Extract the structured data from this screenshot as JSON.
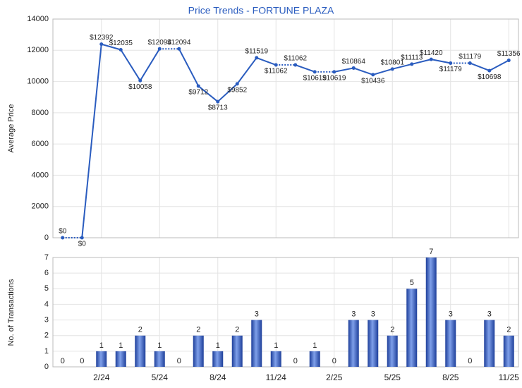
{
  "chart_data": [
    {
      "type": "line",
      "title": "Price Trends - FORTUNE PLAZA",
      "y_label": "Average Price",
      "color": "#2a5cbf",
      "values": [
        0,
        0,
        12392,
        12035,
        10058,
        12094,
        12094,
        9712,
        8713,
        9852,
        11519,
        11062,
        11062,
        10619,
        10619,
        10864,
        10436,
        10801,
        11113,
        11420,
        11179,
        11179,
        10698,
        11356
      ],
      "value_labels": [
        "$0",
        "$0",
        "$12392",
        "$12035",
        "$10058",
        "$12094",
        "$12094",
        "$9712",
        "$8713",
        "$9852",
        "$11519",
        "$11062",
        "$11062",
        "$10619",
        "$10619",
        "$10864",
        "$10436",
        "$10801",
        "$11113",
        "$11420",
        "$11179",
        "$11179",
        "$10698",
        "$11356"
      ],
      "ylim": [
        0,
        14000
      ],
      "yticks": [
        0,
        2000,
        4000,
        6000,
        8000,
        10000,
        12000,
        14000
      ],
      "grid": true
    },
    {
      "type": "bar",
      "y_label": "No. of Transactions",
      "color": "#3b64c8",
      "categories": [
        null,
        null,
        "2/24",
        null,
        null,
        "5/24",
        null,
        null,
        "8/24",
        null,
        null,
        "11/24",
        null,
        null,
        "2/25",
        null,
        null,
        "5/25",
        null,
        null,
        "8/25",
        null,
        null,
        "11/25"
      ],
      "values": [
        0,
        0,
        1,
        1,
        2,
        1,
        0,
        2,
        1,
        2,
        3,
        1,
        0,
        1,
        0,
        3,
        3,
        2,
        5,
        7,
        3,
        0,
        3,
        2
      ],
      "ylim": [
        0,
        7
      ],
      "yticks": [
        0,
        1,
        2,
        3,
        4,
        5,
        6,
        7
      ],
      "grid": true
    }
  ]
}
